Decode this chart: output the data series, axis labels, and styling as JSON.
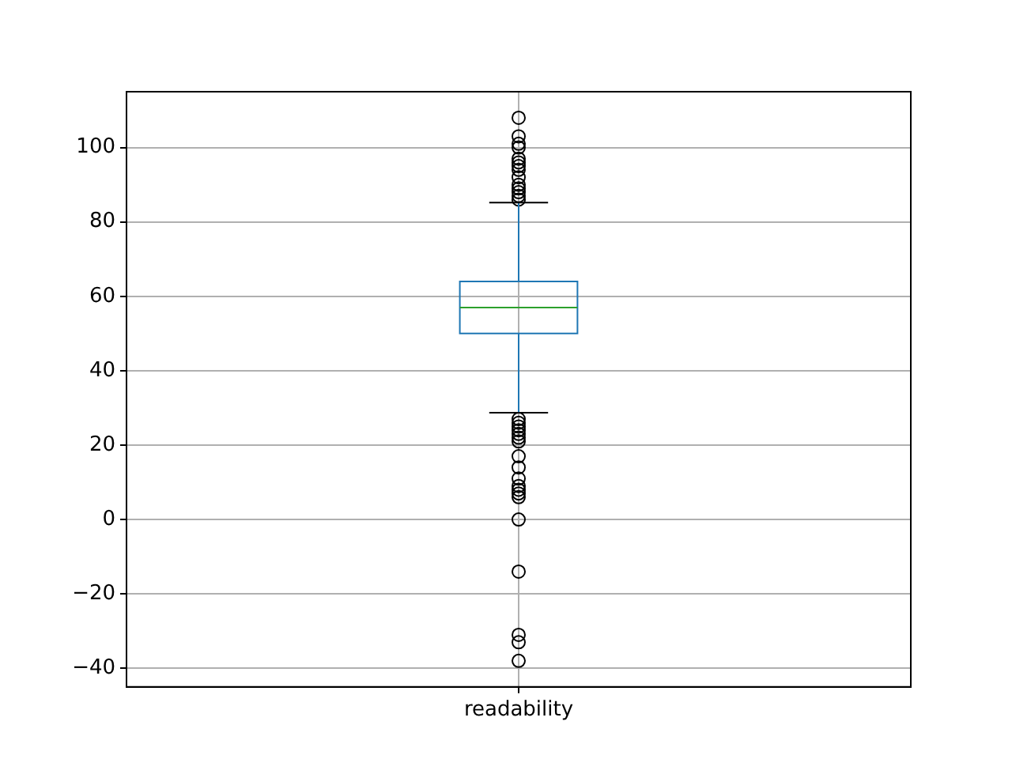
{
  "chart_data": {
    "type": "box",
    "categories": [
      "readability"
    ],
    "color": "#1f77b4",
    "boxes": [
      {
        "low": 28.7,
        "q1": 50,
        "median": 57,
        "q3": 64,
        "high": 85.2,
        "outliers": [
          108,
          103,
          101,
          100,
          97,
          96,
          95,
          94,
          92,
          90,
          89,
          88,
          87,
          86,
          27,
          26,
          25,
          24,
          23,
          22,
          21,
          17,
          14,
          11,
          9,
          8,
          7,
          6,
          0,
          -14,
          -31,
          -33,
          -38
        ]
      }
    ],
    "ylim": [
      -45,
      115
    ],
    "yticks": [
      -40,
      -20,
      0,
      20,
      40,
      60,
      80,
      100
    ],
    "grid": true
  }
}
